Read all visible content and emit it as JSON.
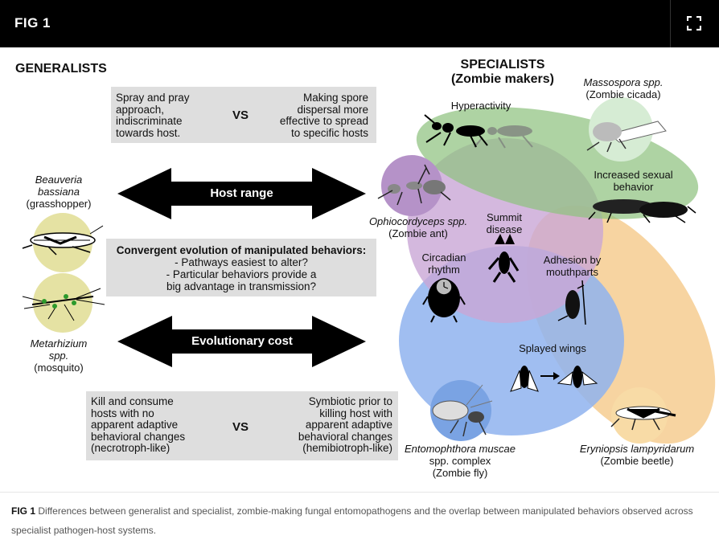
{
  "header": {
    "title": "FIG 1",
    "fullscreen_icon": "expand-icon"
  },
  "figure": {
    "generalists_heading": "GENERALISTS",
    "specialists_heading_line1": "SPECIALISTS",
    "specialists_heading_line2": "(Zombie makers)",
    "top_box": {
      "left_lines": [
        "Spray and pray",
        "approach,",
        "indiscriminate",
        "towards host."
      ],
      "vs": "VS",
      "right_lines": [
        "Making spore",
        "dispersal more",
        "effective to spread",
        "to specific hosts"
      ]
    },
    "host_range_label": "Host range",
    "evolutionary_cost_label": "Evolutionary cost",
    "middle_box": {
      "line1": "Convergent evolution of manipulated behaviors:",
      "line2": "- Pathways easiest to alter?",
      "line3": "- Particular behaviors provide a",
      "line4": "big advantage in transmission?"
    },
    "bottom_box": {
      "left_lines": [
        "Kill and consume",
        "hosts with no",
        "apparent adaptive",
        "behavioral changes",
        "(necrotroph-like)"
      ],
      "vs": "VS",
      "right_lines": [
        "Symbiotic prior to",
        "killing host with",
        "apparent adaptive",
        "behavioral changes",
        "(hemibiotroph-like)"
      ]
    },
    "beauveria": {
      "name1": "Beauveria",
      "name2": "bassiana",
      "common": "(grasshopper)"
    },
    "metarhizium": {
      "name1": "Metarhizium",
      "name2": "spp.",
      "common": "(mosquito)"
    },
    "ophiocordyceps": {
      "name": "Ophiocordyceps spp.",
      "common": "(Zombie ant)"
    },
    "massospora": {
      "name": "Massospora spp.",
      "common": "(Zombie cicada)"
    },
    "entomophthora": {
      "name1": "Entomophthora muscae",
      "name2": "spp. complex",
      "common": "(Zombie fly)"
    },
    "eryniopsis": {
      "name": "Eryniopsis lampyridarum",
      "common": "(Zombie beetle)"
    },
    "behaviors": {
      "hyperactivity": "Hyperactivity",
      "sexual_line1": "Increased sexual",
      "sexual_line2": "behavior",
      "summit_line1": "Summit",
      "summit_line2": "disease",
      "circadian_line1": "Circadian",
      "circadian_line2": "rhythm",
      "adhesion_line1": "Adhesion by",
      "adhesion_line2": "mouthparts",
      "splayed": "Splayed wings"
    },
    "colors": {
      "green_set": "#8fc27f",
      "purple_set": "#c9a6d6",
      "blue_set": "#8fb3ee",
      "orange_set": "#f5c98a",
      "generalist_disc": "#e5e2a3",
      "box_grey": "#dedede"
    }
  },
  "caption": {
    "label": "FIG 1",
    "text": "Differences between generalist and specialist, zombie-making fungal entomopathogens and the overlap between manipulated behaviors observed across specialist pathogen-host systems."
  }
}
